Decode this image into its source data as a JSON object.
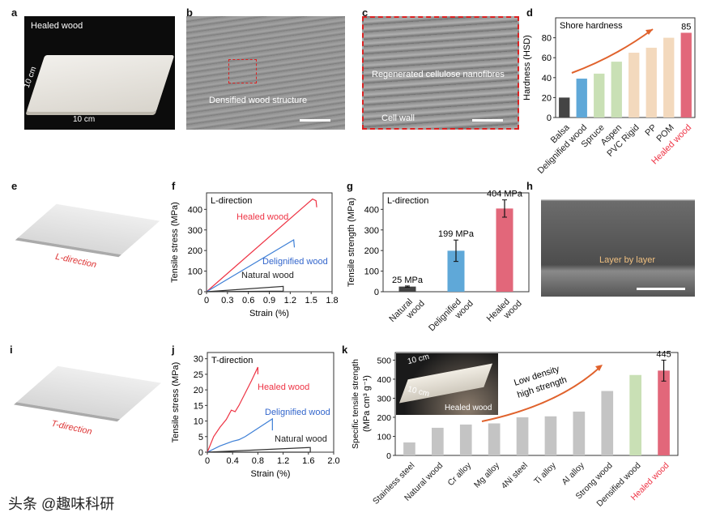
{
  "panels": {
    "a": "a",
    "b": "b",
    "c": "c",
    "d": "d",
    "e": "e",
    "f": "f",
    "g": "g",
    "h": "h",
    "i": "i",
    "j": "j",
    "k": "k"
  },
  "photo_a": {
    "title": "Healed wood",
    "dim_side": "10 cm",
    "dim_bottom": "10 cm"
  },
  "photo_b": {
    "caption": "Densified wood structure"
  },
  "photo_c": {
    "label1": "Regenerated cellulose nanofibres",
    "label2": "Cell wall"
  },
  "photo_e": {
    "label": "L-direction"
  },
  "photo_h": {
    "label": "Layer by layer"
  },
  "photo_i": {
    "label": "T-direction"
  },
  "inset_k": {
    "dim1": "10 cm",
    "dim2": "10 cm",
    "title": "Healed wood"
  },
  "watermark": "头条 @趣味科研",
  "colors": {
    "natural": "#444444",
    "delignified": "#5fa8d8",
    "healed": "#e2677a",
    "hardwood": "#c9e0b5",
    "polymer": "#f3d9bd",
    "metal": "#c4c4c4",
    "arrow": "#e0622c",
    "red_text": "#ee3344",
    "blue_text": "#3366cc"
  },
  "chart_data": [
    {
      "id": "d",
      "type": "bar",
      "title": "Shore hardness",
      "ylabel": "Hardness (HSD)",
      "ylim": [
        0,
        100
      ],
      "yticks": [
        0,
        20,
        40,
        60,
        80
      ],
      "categories": [
        "Balsa",
        "Delignified wood",
        "Spruce",
        "Aspen",
        "PVC Rigid",
        "PP",
        "POM",
        "Healed wood"
      ],
      "values": [
        20,
        39,
        44,
        56,
        65,
        70,
        80,
        85
      ],
      "colors": [
        "#444444",
        "#5fa8d8",
        "#c9e0b5",
        "#c9e0b5",
        "#f3d9bd",
        "#f3d9bd",
        "#f3d9bd",
        "#e2677a"
      ],
      "value_labels": {
        "7": "85"
      }
    },
    {
      "id": "f",
      "type": "line",
      "title": "L-direction",
      "xlabel": "Strain (%)",
      "ylabel": "Tensile stress (MPa)",
      "xlim": [
        0,
        1.8
      ],
      "ylim": [
        0,
        480
      ],
      "xticks": [
        "0",
        "0.3",
        "0.6",
        "0.9",
        "1.2",
        "1.5",
        "1.8"
      ],
      "yticks": [
        0,
        100,
        200,
        300,
        400
      ],
      "series": [
        {
          "name": "Healed wood",
          "color": "#ee3344",
          "points": [
            [
              0,
              0
            ],
            [
              1.52,
              450
            ],
            [
              1.57,
              442
            ],
            [
              1.58,
              410
            ]
          ]
        },
        {
          "name": "Delignified wood",
          "color": "#3d7fd6",
          "points": [
            [
              0,
              0
            ],
            [
              1.25,
              252
            ],
            [
              1.26,
              215
            ]
          ]
        },
        {
          "name": "Natural wood",
          "color": "#333333",
          "points": [
            [
              0,
              0
            ],
            [
              1.1,
              26
            ],
            [
              1.1,
              3
            ],
            [
              0,
              0
            ]
          ]
        }
      ]
    },
    {
      "id": "g",
      "type": "bar",
      "title": "L-direction",
      "ylabel": "Tensile strength (MPa)",
      "ylim": [
        0,
        480
      ],
      "yticks": [
        0,
        100,
        200,
        300,
        400
      ],
      "categories": [
        "Natural wood",
        "Delignified wood",
        "Healed wood"
      ],
      "values": [
        25,
        199,
        404
      ],
      "errors": [
        3,
        52,
        42
      ],
      "value_labels": [
        "25 MPa",
        "199 MPa",
        "404 MPa"
      ],
      "colors": [
        "#444444",
        "#5fa8d8",
        "#e2677a"
      ]
    },
    {
      "id": "j",
      "type": "line",
      "title": "T-direction",
      "xlabel": "Strain (%)",
      "ylabel": "Tensile stress (MPa)",
      "xlim": [
        0,
        2.0
      ],
      "ylim": [
        0,
        32
      ],
      "xticks": [
        "0",
        "0.4",
        "0.8",
        "1.2",
        "1.6",
        "2.0"
      ],
      "yticks": [
        0,
        5,
        10,
        15,
        20,
        25,
        30
      ],
      "series": [
        {
          "name": "Healed wood",
          "color": "#ee3344",
          "points": [
            [
              0,
              0
            ],
            [
              0.1,
              5
            ],
            [
              0.2,
              8
            ],
            [
              0.3,
              10.5
            ],
            [
              0.38,
              13.5
            ],
            [
              0.44,
              13
            ],
            [
              0.5,
              15
            ],
            [
              0.6,
              19
            ],
            [
              0.7,
              23
            ],
            [
              0.8,
              27.3
            ],
            [
              0.8,
              25
            ]
          ]
        },
        {
          "name": "Delignified wood",
          "color": "#3d7fd6",
          "points": [
            [
              0,
              0
            ],
            [
              0.2,
              2
            ],
            [
              0.4,
              3.5
            ],
            [
              0.5,
              4
            ],
            [
              0.6,
              5
            ],
            [
              0.75,
              7
            ],
            [
              1.03,
              10.7
            ],
            [
              1.03,
              7
            ]
          ]
        },
        {
          "name": "Natural wood",
          "color": "#333333",
          "points": [
            [
              0,
              0
            ],
            [
              1.63,
              1.5
            ],
            [
              1.63,
              0
            ],
            [
              0,
              0
            ]
          ]
        }
      ]
    },
    {
      "id": "k",
      "type": "bar",
      "ylabel": "Specific tensile strength",
      "ylabel2": "(MPa cm³ g⁻¹)",
      "ylim": [
        0,
        540
      ],
      "yticks": [
        0,
        100,
        200,
        300,
        400,
        500
      ],
      "categories": [
        "Stainless steel",
        "Natural wood",
        "Cr alloy",
        "Mg alloy",
        "4Ni steel",
        "Ti alloy",
        "Al alloy",
        "Strong wood",
        "Densified wood",
        "Healed wood"
      ],
      "values": [
        68,
        145,
        162,
        168,
        200,
        205,
        230,
        338,
        422,
        445
      ],
      "errors": {
        "9": 55
      },
      "value_labels": {
        "9": "445"
      },
      "colors": [
        "#c4c4c4",
        "#c4c4c4",
        "#c4c4c4",
        "#c4c4c4",
        "#c4c4c4",
        "#c4c4c4",
        "#c4c4c4",
        "#c4c4c4",
        "#c9e0b5",
        "#e2677a"
      ],
      "annotation": "Low density high strength",
      "annotation_lines": [
        "Low density",
        "high strength"
      ]
    }
  ]
}
